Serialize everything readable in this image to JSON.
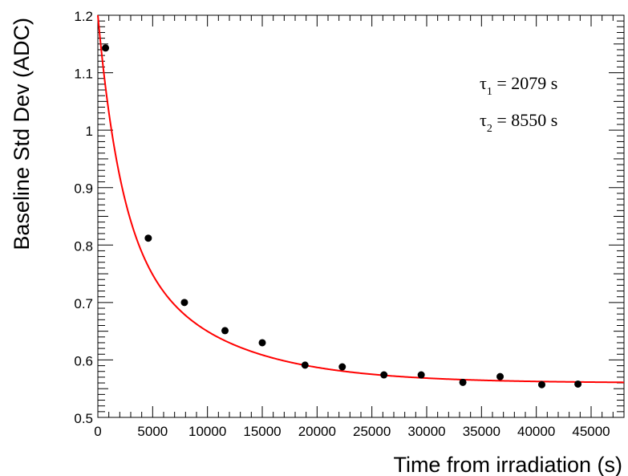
{
  "chart_data": {
    "type": "scatter",
    "title": "",
    "xlabel": "Time from irradiation (s)",
    "ylabel": "Baseline Std Dev (ADC)",
    "xlim": [
      0,
      48000
    ],
    "ylim": [
      0.5,
      1.2
    ],
    "x_ticks": [
      0,
      5000,
      10000,
      15000,
      20000,
      25000,
      30000,
      35000,
      40000,
      45000
    ],
    "x_tick_labels": [
      "0",
      "5000",
      "10000",
      "15000",
      "20000",
      "25000",
      "30000",
      "35000",
      "40000",
      "45000"
    ],
    "y_ticks": [
      0.5,
      0.6,
      0.7,
      0.8,
      0.9,
      1.0,
      1.1,
      1.2
    ],
    "y_tick_labels": [
      "0.5",
      "0.6",
      "0.7",
      "0.8",
      "0.9",
      "1",
      "1.1",
      "1.2"
    ],
    "grid": false,
    "series": [
      {
        "kind": "points",
        "color": "#000000",
        "x": [
          700,
          4600,
          7900,
          11600,
          15000,
          18900,
          22300,
          26100,
          29500,
          33300,
          36700,
          40500,
          43800
        ],
        "y": [
          1.143,
          0.812,
          0.7,
          0.651,
          0.63,
          0.591,
          0.588,
          0.574,
          0.574,
          0.561,
          0.571,
          0.557,
          0.558
        ]
      },
      {
        "kind": "fit",
        "color": "#ff0000",
        "function": "double_exponential",
        "params": {
          "A1": 0.36,
          "tau1": 2079,
          "A2": 0.28,
          "tau2": 8550,
          "offset": 0.56
        }
      }
    ],
    "annotations": [
      {
        "symbol": "τ",
        "subscript": "1",
        "text": " = 2079 s"
      },
      {
        "symbol": "τ",
        "subscript": "2",
        "text": " = 8550 s"
      }
    ]
  }
}
